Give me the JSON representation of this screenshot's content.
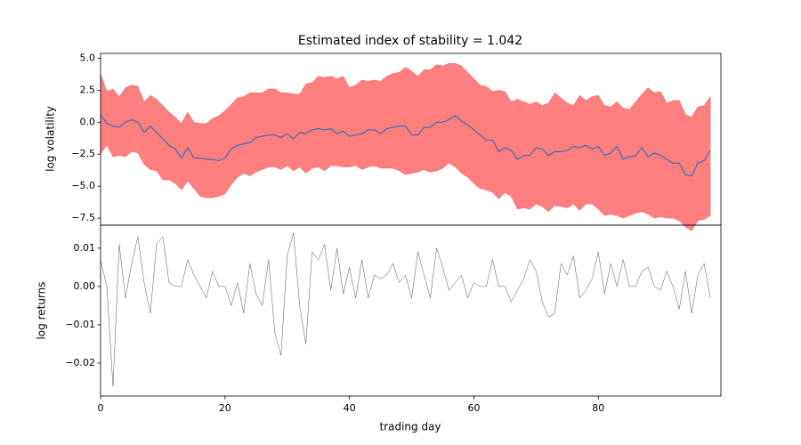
{
  "chart_data": [
    {
      "type": "band-line",
      "title": "Estimated index of stability = 1.042",
      "ylabel": "log volatility",
      "x": [
        0,
        1,
        2,
        3,
        4,
        5,
        6,
        7,
        8,
        9,
        10,
        11,
        12,
        13,
        14,
        15,
        16,
        17,
        18,
        19,
        20,
        21,
        22,
        23,
        24,
        25,
        26,
        27,
        28,
        29,
        30,
        31,
        32,
        33,
        34,
        35,
        36,
        37,
        38,
        39,
        40,
        41,
        42,
        43,
        44,
        45,
        46,
        47,
        48,
        49,
        50,
        51,
        52,
        53,
        54,
        55,
        56,
        57,
        58,
        59,
        60,
        61,
        62,
        63,
        64,
        65,
        66,
        67,
        68,
        69,
        70,
        71,
        72,
        73,
        74,
        75,
        76,
        77,
        78,
        79,
        80,
        81,
        82,
        83,
        84,
        85,
        86,
        87,
        88,
        89,
        90,
        91,
        92,
        93,
        94,
        95,
        96,
        97,
        98
      ],
      "band": {
        "color": "#ff0000",
        "opacity": 0.5,
        "upper": [
          3.8,
          2.4,
          2.6,
          2.0,
          2.7,
          2.9,
          2.8,
          1.6,
          2.1,
          1.8,
          1.3,
          0.8,
          0.4,
          -0.1,
          0.8,
          0.0,
          -0.1,
          -0.1,
          0.3,
          0.5,
          0.9,
          1.4,
          1.9,
          2.0,
          2.3,
          2.3,
          2.3,
          2.6,
          2.6,
          2.3,
          2.3,
          2.2,
          2.2,
          3.0,
          3.1,
          3.6,
          3.5,
          3.6,
          3.4,
          3.6,
          2.7,
          2.9,
          3.3,
          3.2,
          3.3,
          3.2,
          3.6,
          3.8,
          3.9,
          4.3,
          4.0,
          3.6,
          4.1,
          4.1,
          4.5,
          4.4,
          4.6,
          4.6,
          4.4,
          3.9,
          3.4,
          2.9,
          2.8,
          2.4,
          2.5,
          2.4,
          1.6,
          1.8,
          1.6,
          1.4,
          1.6,
          1.3,
          1.5,
          2.3,
          1.9,
          1.5,
          1.3,
          2.1,
          1.7,
          2.0,
          2.1,
          1.3,
          1.2,
          1.6,
          1.1,
          1.0,
          1.6,
          2.2,
          2.7,
          2.3,
          2.4,
          1.5,
          1.7,
          1.7,
          0.6,
          0.4,
          1.2,
          1.3,
          2.0
        ],
        "lower": [
          -2.5,
          -1.8,
          -2.7,
          -2.6,
          -2.7,
          -2.3,
          -2.4,
          -3.3,
          -3.7,
          -3.8,
          -4.5,
          -4.5,
          -4.8,
          -5.3,
          -4.6,
          -5.2,
          -5.8,
          -5.9,
          -5.9,
          -5.8,
          -5.6,
          -4.9,
          -4.3,
          -4.0,
          -4.2,
          -3.9,
          -3.7,
          -3.5,
          -3.5,
          -3.7,
          -3.4,
          -3.8,
          -3.5,
          -4.0,
          -3.6,
          -3.5,
          -3.8,
          -3.4,
          -3.4,
          -3.5,
          -3.5,
          -3.4,
          -3.7,
          -3.5,
          -3.4,
          -3.6,
          -3.6,
          -3.6,
          -3.8,
          -4.1,
          -4.0,
          -3.9,
          -3.7,
          -3.9,
          -3.8,
          -3.6,
          -3.2,
          -3.5,
          -4.0,
          -4.3,
          -4.8,
          -5.2,
          -5.3,
          -5.5,
          -6.0,
          -5.5,
          -5.8,
          -6.8,
          -6.7,
          -6.8,
          -6.4,
          -6.6,
          -7.0,
          -6.5,
          -6.6,
          -6.7,
          -6.4,
          -6.9,
          -6.4,
          -6.4,
          -6.8,
          -7.3,
          -7.2,
          -7.3,
          -7.5,
          -7.3,
          -7.1,
          -7.0,
          -7.2,
          -7.5,
          -7.4,
          -7.5,
          -7.5,
          -7.7,
          -8.2,
          -8.5,
          -7.7,
          -7.6,
          -7.3
        ]
      },
      "series": [
        {
          "color": "#3b6fb6",
          "width": 1.2,
          "values": [
            0.6,
            -0.1,
            -0.3,
            -0.4,
            0.0,
            0.2,
            0.0,
            -0.8,
            -0.3,
            -0.8,
            -1.3,
            -1.8,
            -2.1,
            -2.8,
            -2.0,
            -2.8,
            -2.8,
            -2.9,
            -2.9,
            -3.0,
            -2.8,
            -2.1,
            -1.8,
            -1.7,
            -1.6,
            -1.2,
            -1.1,
            -1.0,
            -1.0,
            -1.2,
            -0.9,
            -1.3,
            -0.8,
            -0.9,
            -0.6,
            -0.5,
            -0.6,
            -0.5,
            -0.9,
            -0.7,
            -1.1,
            -1.0,
            -0.9,
            -0.6,
            -0.6,
            -0.9,
            -0.5,
            -0.4,
            -0.3,
            -0.3,
            -1.0,
            -1.0,
            -0.4,
            -0.4,
            0.0,
            0.0,
            0.2,
            0.5,
            0.1,
            -0.2,
            -0.6,
            -1.0,
            -1.4,
            -1.4,
            -2.3,
            -2.0,
            -2.2,
            -2.9,
            -2.6,
            -2.6,
            -2.0,
            -2.1,
            -2.6,
            -2.3,
            -2.3,
            -2.2,
            -1.9,
            -2.0,
            -1.8,
            -2.1,
            -1.9,
            -2.6,
            -2.4,
            -1.9,
            -2.9,
            -2.7,
            -2.6,
            -2.0,
            -2.7,
            -2.4,
            -2.6,
            -2.9,
            -3.2,
            -3.2,
            -4.1,
            -4.2,
            -3.2,
            -3.0,
            -2.2
          ]
        }
      ],
      "xlim": [
        0,
        99.7
      ],
      "ylim": [
        -8.05,
        5.38
      ],
      "yticks": [
        {
          "value": -7.5,
          "label": "−7.5"
        },
        {
          "value": -5,
          "label": "−5.0"
        },
        {
          "value": -2.5,
          "label": "−2.5"
        },
        {
          "value": 0,
          "label": "0.0"
        },
        2.5,
        {
          "value": 5,
          "label": "5.0"
        }
      ]
    },
    {
      "type": "line",
      "ylabel": "log returns",
      "xlabel": "trading day",
      "x": [
        0,
        1,
        2,
        3,
        4,
        5,
        6,
        7,
        8,
        9,
        10,
        11,
        12,
        13,
        14,
        15,
        16,
        17,
        18,
        19,
        20,
        21,
        22,
        23,
        24,
        25,
        26,
        27,
        28,
        29,
        30,
        31,
        32,
        33,
        34,
        35,
        36,
        37,
        38,
        39,
        40,
        41,
        42,
        43,
        44,
        45,
        46,
        47,
        48,
        49,
        50,
        51,
        52,
        53,
        54,
        55,
        56,
        57,
        58,
        59,
        60,
        61,
        62,
        63,
        64,
        65,
        66,
        67,
        68,
        69,
        70,
        71,
        72,
        73,
        74,
        75,
        76,
        77,
        78,
        79,
        80,
        81,
        82,
        83,
        84,
        85,
        86,
        87,
        88,
        89,
        90,
        91,
        92,
        93,
        94,
        95,
        96,
        97,
        98
      ],
      "series": [
        {
          "color": "#555555",
          "width": 0.5,
          "values": [
            0.007,
            0.0,
            -0.026,
            0.011,
            -0.003,
            0.006,
            0.013,
            0.001,
            -0.007,
            0.011,
            0.013,
            0.001,
            0.0,
            0.0,
            0.007,
            0.003,
            0.0,
            -0.003,
            0.004,
            0.0,
            0.0,
            -0.005,
            0.001,
            -0.007,
            0.006,
            -0.002,
            -0.005,
            0.007,
            -0.012,
            -0.018,
            0.008,
            0.014,
            -0.005,
            -0.015,
            0.009,
            0.007,
            0.011,
            -0.001,
            0.01,
            -0.002,
            0.005,
            -0.003,
            0.007,
            -0.003,
            0.003,
            0.002,
            0.003,
            0.006,
            0.001,
            0.003,
            -0.003,
            0.009,
            0.003,
            -0.003,
            0.01,
            0.005,
            -0.001,
            0.001,
            0.003,
            -0.003,
            0.001,
            0.0,
            0.0,
            0.007,
            0.0,
            0.0,
            -0.004,
            -0.001,
            0.002,
            0.007,
            0.004,
            -0.004,
            -0.008,
            -0.007,
            0.006,
            0.003,
            0.008,
            -0.003,
            -0.001,
            0.002,
            0.009,
            -0.002,
            0.006,
            0.0,
            0.007,
            0.0,
            0.0,
            0.004,
            0.005,
            0.0,
            -0.001,
            0.004,
            0.0,
            -0.006,
            0.004,
            -0.007,
            0.003,
            0.006,
            -0.003
          ]
        }
      ],
      "xlim": [
        0,
        99.7
      ],
      "ylim": [
        -0.0286,
        0.016
      ],
      "xticks": [
        0,
        20,
        40,
        60,
        80
      ],
      "yticks": [
        {
          "value": -0.02,
          "label": "−0.02"
        },
        {
          "value": -0.01,
          "label": "−0.01"
        },
        {
          "value": 0,
          "label": "0.00"
        },
        0.01
      ]
    }
  ]
}
